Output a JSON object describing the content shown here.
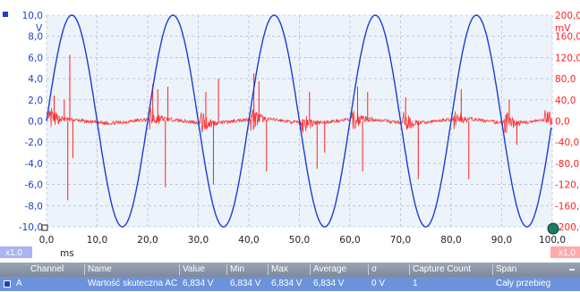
{
  "chart_data": {
    "type": "line",
    "x_axis": {
      "unit": "ms",
      "range": [
        0,
        100
      ],
      "ticks": [
        "0,0",
        "10,0",
        "20,0",
        "30,0",
        "40,0",
        "50,0",
        "60,0",
        "70,0",
        "80,0",
        "90,0",
        "100,0"
      ]
    },
    "left_axis": {
      "unit": "V",
      "range": [
        -10,
        10
      ],
      "ticks": [
        "10,0",
        "8,0",
        "6,0",
        "4,0",
        "2,0",
        "0,0",
        "-2,0",
        "-4,0",
        "-6,0",
        "-8,0",
        "-10,0"
      ],
      "scale_badge": "x1,0",
      "color": "#1a3fd0"
    },
    "right_axis": {
      "unit": "mV",
      "range": [
        -200,
        200
      ],
      "ticks": [
        "200,0",
        "160,0",
        "120,0",
        "80,0",
        "40,0",
        "0,0",
        "-40,0",
        "-80,0",
        "-120,0",
        "-160,0",
        "-200,0"
      ],
      "scale_badge": "x1,0",
      "color": "#ff2020"
    },
    "grid": true,
    "series": [
      {
        "color": "#1a3fd0",
        "axis": "left",
        "shape": "sine",
        "amplitude": 10,
        "period_ms": 20,
        "peak_times_ms": [
          5,
          25,
          45,
          65,
          85
        ],
        "trough_times_ms": [
          15,
          35,
          55,
          75,
          95
        ]
      },
      {
        "color": "#ff2020",
        "axis": "right",
        "shape": "noise with spikes",
        "baseline_mV": 0,
        "bursts_near_ms": [
          1,
          21,
          31,
          41,
          51,
          61,
          71,
          81,
          91,
          99
        ],
        "spikes": [
          {
            "t": 1.5,
            "mV": 48
          },
          {
            "t": 3.5,
            "mV": 40
          },
          {
            "t": 4.2,
            "mV": -150
          },
          {
            "t": 4.6,
            "mV": 125
          },
          {
            "t": 5.2,
            "mV": -70
          },
          {
            "t": 21.0,
            "mV": 70
          },
          {
            "t": 22.0,
            "mV": 60
          },
          {
            "t": 23.5,
            "mV": -125
          },
          {
            "t": 24.0,
            "mV": 65
          },
          {
            "t": 31.5,
            "mV": 55
          },
          {
            "t": 33.0,
            "mV": -120
          },
          {
            "t": 34.0,
            "mV": 80
          },
          {
            "t": 41.0,
            "mV": 90
          },
          {
            "t": 42.0,
            "mV": 75
          },
          {
            "t": 43.5,
            "mV": -95
          },
          {
            "t": 52.0,
            "mV": 55
          },
          {
            "t": 53.5,
            "mV": -90
          },
          {
            "t": 55.0,
            "mV": -60
          },
          {
            "t": 61.5,
            "mV": 65
          },
          {
            "t": 62.5,
            "mV": -95
          },
          {
            "t": 63.5,
            "mV": 55
          },
          {
            "t": 71.0,
            "mV": 45
          },
          {
            "t": 73.5,
            "mV": -110
          },
          {
            "t": 82.0,
            "mV": 60
          },
          {
            "t": 83.5,
            "mV": -110
          },
          {
            "t": 91.5,
            "mV": 40
          },
          {
            "t": 93.0,
            "mV": -45
          },
          {
            "t": 99.0,
            "mV": 15
          }
        ]
      }
    ]
  },
  "measurements": {
    "headers": {
      "channel": "Channel",
      "name": "Name",
      "value": "Value",
      "min": "Min",
      "max": "Max",
      "average": "Average",
      "sigma": "σ",
      "capture_count": "Capture Count",
      "span": "Span"
    },
    "row": {
      "channel": "A",
      "name": "Wartość skuteczna AC",
      "value": "6,834 V",
      "min": "6,834 V",
      "max": "6,834 V",
      "average": "6,834 V",
      "sigma": "0 V",
      "capture_count": "1",
      "span": "Cały przebieg"
    }
  }
}
